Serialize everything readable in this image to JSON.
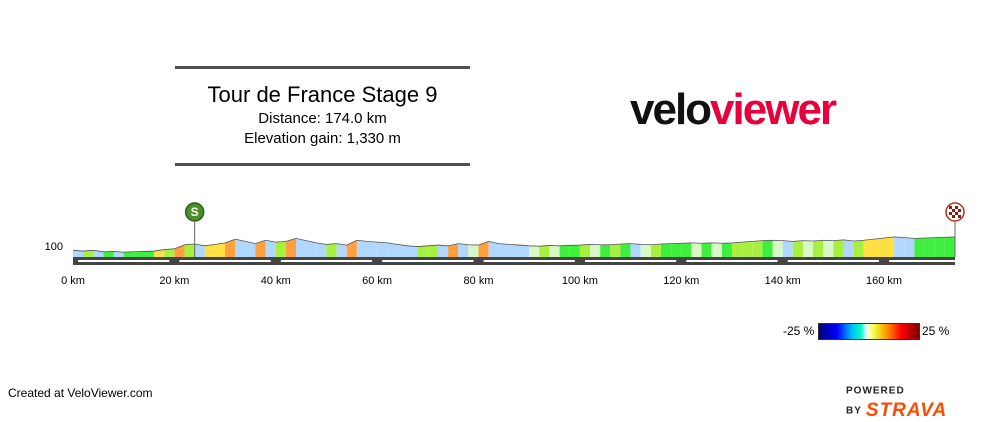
{
  "title": {
    "name": "Tour de France Stage 9",
    "distance": "Distance: 174.0 km",
    "elevation": "Elevation gain: 1,330 m"
  },
  "logo": {
    "part1": "velo",
    "part2": "viewer"
  },
  "footer": {
    "created": "Created at VeloViewer.com",
    "powered": "POWERED BY",
    "brand": "STRAVA"
  },
  "legend": {
    "min_label": "-25 %",
    "max_label": "25 %"
  },
  "markers": {
    "start_icon": "S",
    "finish_icon": "checkered-flag"
  },
  "chart_data": {
    "type": "area",
    "title": "Tour de France Stage 9",
    "xlabel": "",
    "ylabel": "",
    "x_unit": "km",
    "xlim": [
      0,
      174
    ],
    "ylim": [
      70,
      200
    ],
    "x_ticks": [
      0,
      20,
      40,
      60,
      80,
      100,
      120,
      140,
      160
    ],
    "x_tick_labels": [
      "0 km",
      "20 km",
      "40 km",
      "60 km",
      "80 km",
      "100 km",
      "120 km",
      "140 km",
      "160 km"
    ],
    "y_ticks": [
      100
    ],
    "y_tick_labels": [
      "100"
    ],
    "start_km": 24,
    "finish_km": 174,
    "series": [
      {
        "x": [
          0,
          2,
          4,
          6,
          8,
          10,
          12,
          14,
          16,
          18,
          20,
          22,
          24,
          26,
          28,
          30,
          32,
          34,
          36,
          38,
          40,
          42,
          44,
          46,
          48,
          50,
          52,
          54,
          56,
          58,
          60,
          62,
          64,
          66,
          68,
          70,
          72,
          74,
          76,
          78,
          80,
          82,
          84,
          86,
          88,
          90,
          92,
          94,
          96,
          98,
          100,
          102,
          104,
          106,
          108,
          110,
          112,
          114,
          116,
          118,
          120,
          122,
          124,
          126,
          128,
          130,
          132,
          134,
          136,
          138,
          140,
          142,
          144,
          146,
          148,
          150,
          152,
          154,
          156,
          158,
          160,
          162,
          164,
          166,
          168,
          170,
          172,
          174
        ],
        "y": [
          88,
          86,
          88,
          84,
          85,
          83,
          84,
          85,
          86,
          90,
          92,
          103,
          105,
          100,
          104,
          108,
          118,
          112,
          106,
          115,
          110,
          112,
          120,
          114,
          108,
          104,
          106,
          102,
          115,
          112,
          110,
          108,
          104,
          100,
          98,
          100,
          102,
          100,
          106,
          103,
          102,
          112,
          106,
          104,
          102,
          100,
          99,
          101,
          100,
          101,
          102,
          104,
          103,
          103,
          105,
          106,
          104,
          103,
          105,
          106,
          107,
          108,
          107,
          108,
          107,
          108,
          110,
          112,
          114,
          115,
          114,
          112,
          114,
          113,
          115,
          114,
          116,
          113,
          115,
          118,
          121,
          124,
          122,
          120,
          121,
          122,
          123,
          124
        ]
      }
    ]
  }
}
